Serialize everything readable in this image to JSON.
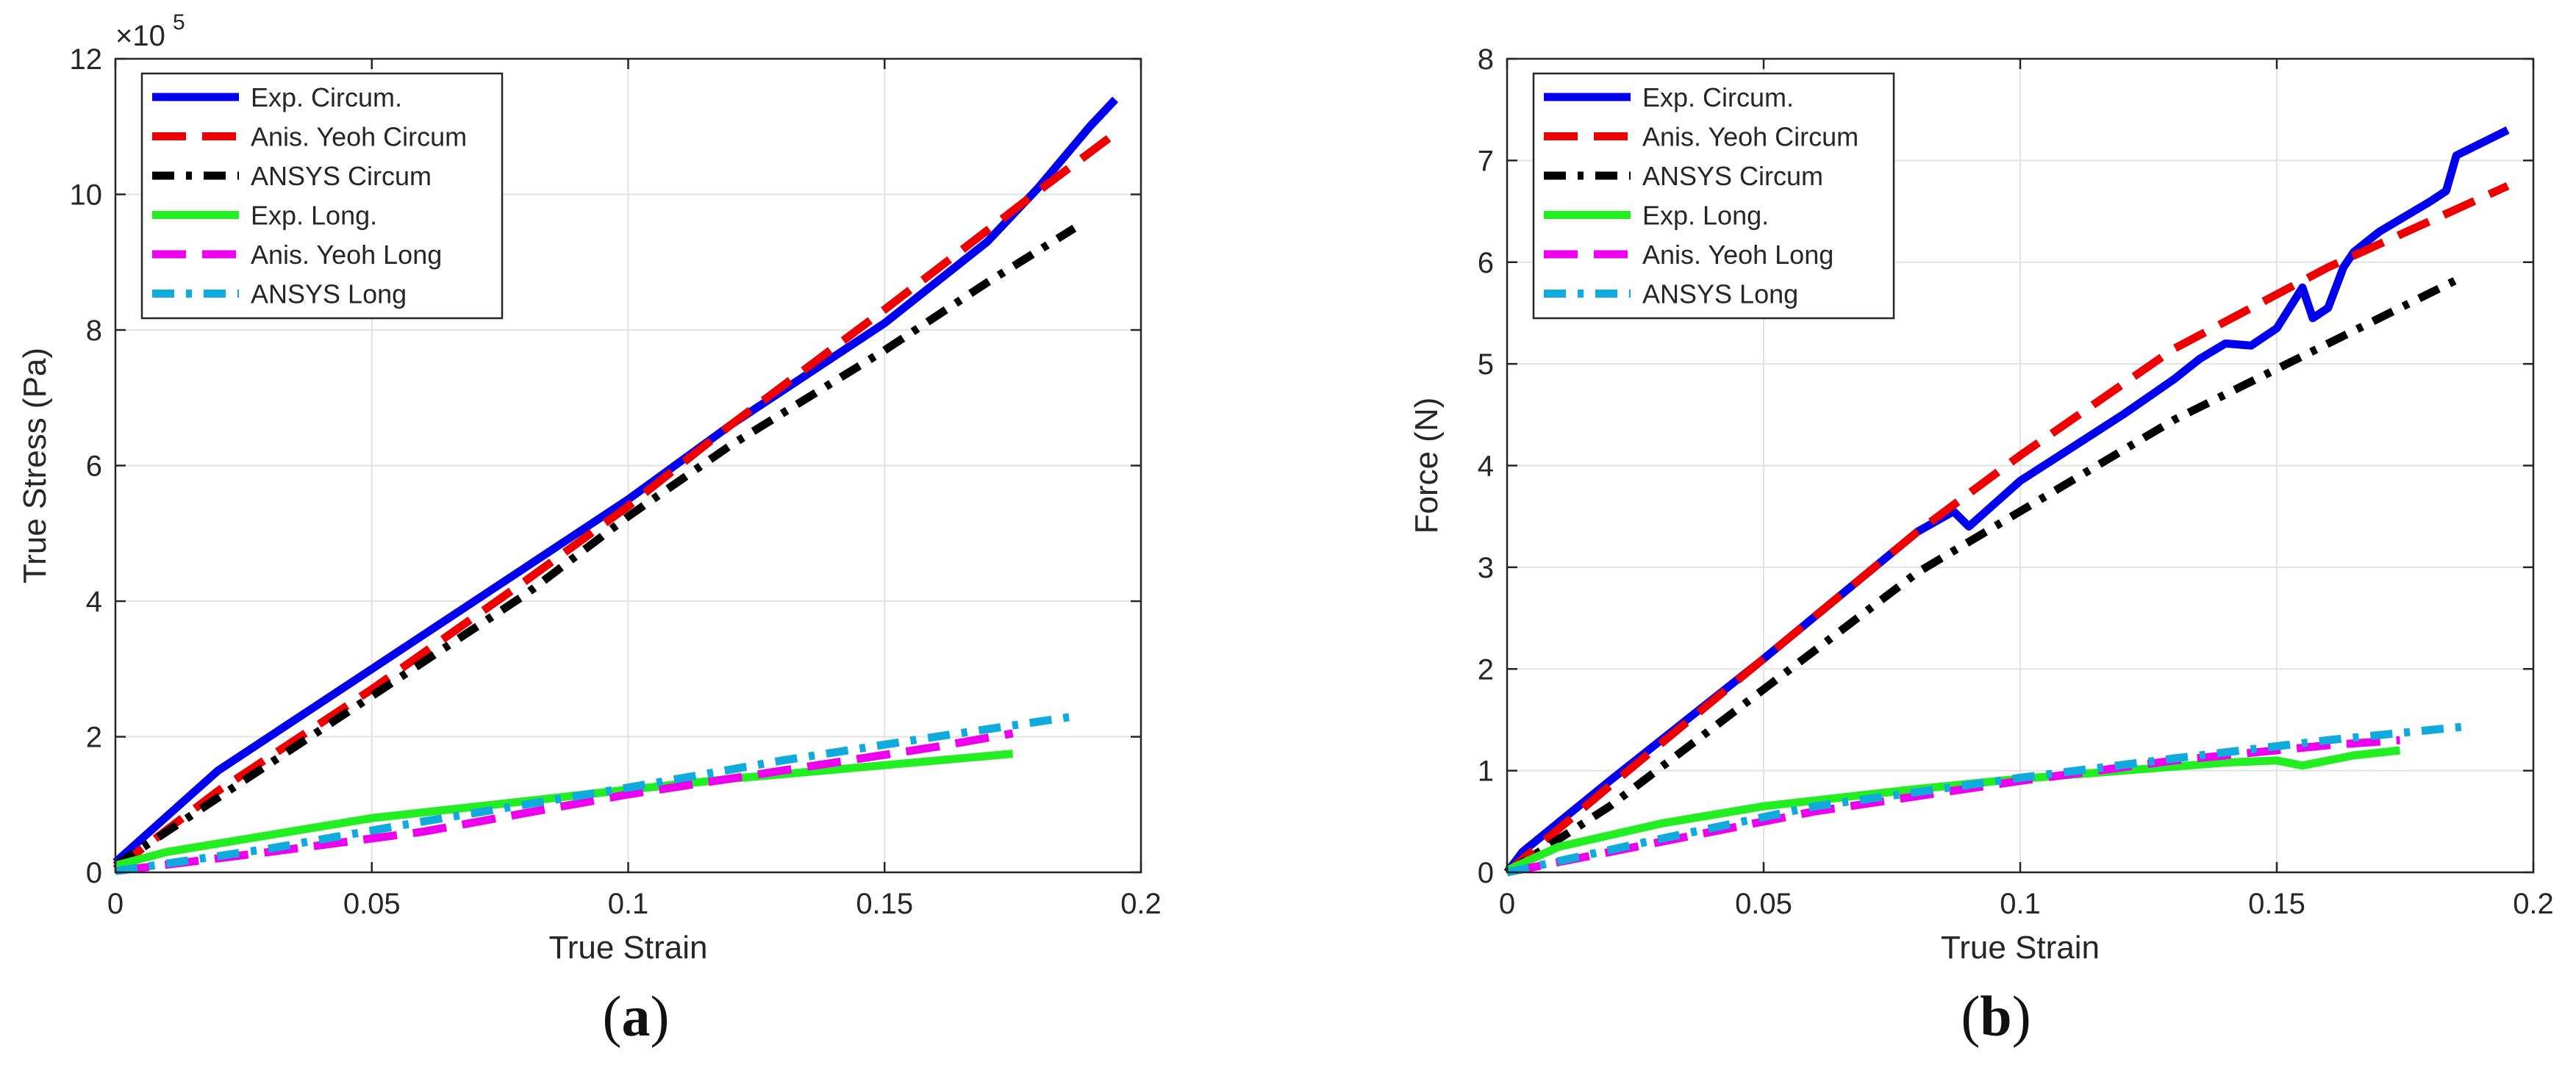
{
  "chart_data": [
    {
      "type": "line",
      "panel": "a",
      "xlabel": "True Strain",
      "ylabel": "True Stress (Pa)",
      "exponent_label": "×10",
      "exponent_power": "5",
      "scale": 100000,
      "xlim": [
        0,
        0.2
      ],
      "ylim": [
        0,
        12
      ],
      "xticks": [
        0,
        0.05,
        0.1,
        0.15,
        0.2
      ],
      "xtick_labels": [
        "0",
        "0.05",
        "0.1",
        "0.15",
        "0.2"
      ],
      "yticks": [
        0,
        2,
        4,
        6,
        8,
        10,
        12
      ],
      "ytick_labels": [
        "0",
        "2",
        "4",
        "6",
        "8",
        "10",
        "12"
      ],
      "grid": true,
      "legend_position": "top-left",
      "series": [
        {
          "name": "Exp. Circum.",
          "color": "#0000ee",
          "style": "solid",
          "x": [
            0,
            0.02,
            0.05,
            0.08,
            0.1,
            0.12,
            0.15,
            0.17,
            0.18,
            0.19,
            0.195
          ],
          "y": [
            0.15,
            1.5,
            3.0,
            4.5,
            5.5,
            6.6,
            8.1,
            9.3,
            10.1,
            11.0,
            11.4
          ]
        },
        {
          "name": "Anis. Yeoh Circum",
          "color": "#ee0000",
          "style": "dash",
          "x": [
            0,
            0.02,
            0.05,
            0.08,
            0.1,
            0.12,
            0.15,
            0.18,
            0.195
          ],
          "y": [
            0.05,
            1.2,
            2.7,
            4.3,
            5.4,
            6.6,
            8.3,
            10.05,
            10.9
          ]
        },
        {
          "name": "ANSYS Circum",
          "color": "#000000",
          "style": "dashdot",
          "x": [
            0,
            0.02,
            0.05,
            0.08,
            0.1,
            0.12,
            0.15,
            0.17,
            0.187
          ],
          "y": [
            0.1,
            1.1,
            2.6,
            4.1,
            5.25,
            6.3,
            7.7,
            8.7,
            9.5
          ]
        },
        {
          "name": "Exp. Long.",
          "color": "#22ee22",
          "style": "solid",
          "x": [
            0,
            0.01,
            0.03,
            0.05,
            0.08,
            0.1,
            0.12,
            0.15,
            0.175
          ],
          "y": [
            0.1,
            0.3,
            0.55,
            0.8,
            1.05,
            1.22,
            1.38,
            1.58,
            1.75
          ]
        },
        {
          "name": "Anis. Yeoh Long",
          "color": "#ee00ee",
          "style": "dash",
          "x": [
            0,
            0.03,
            0.06,
            0.1,
            0.13,
            0.16,
            0.175
          ],
          "y": [
            0.02,
            0.3,
            0.6,
            1.15,
            1.5,
            1.85,
            2.05
          ]
        },
        {
          "name": "ANSYS Long",
          "color": "#11aadd",
          "style": "dashdot",
          "x": [
            0,
            0.03,
            0.06,
            0.1,
            0.13,
            0.16,
            0.187
          ],
          "y": [
            0.02,
            0.35,
            0.75,
            1.25,
            1.65,
            2.0,
            2.3
          ]
        }
      ]
    },
    {
      "type": "line",
      "panel": "b",
      "xlabel": "True Strain",
      "ylabel": "Force (N)",
      "xlim": [
        0,
        0.2
      ],
      "ylim": [
        0,
        8
      ],
      "xticks": [
        0,
        0.05,
        0.1,
        0.15,
        0.2
      ],
      "xtick_labels": [
        "0",
        "0.05",
        "0.1",
        "0.15",
        "0.2"
      ],
      "yticks": [
        0,
        1,
        2,
        3,
        4,
        5,
        6,
        7,
        8
      ],
      "ytick_labels": [
        "0",
        "1",
        "2",
        "3",
        "4",
        "5",
        "6",
        "7",
        "8"
      ],
      "grid": true,
      "legend_position": "top-left",
      "series": [
        {
          "name": "Exp. Circum.",
          "color": "#0000ee",
          "style": "solid",
          "x": [
            0,
            0.003,
            0.02,
            0.05,
            0.08,
            0.087,
            0.09,
            0.1,
            0.12,
            0.13,
            0.135,
            0.14,
            0.145,
            0.15,
            0.155,
            0.157,
            0.16,
            0.163,
            0.165,
            0.17,
            0.18,
            0.183,
            0.185,
            0.195
          ],
          "y": [
            0,
            0.2,
            0.9,
            2.1,
            3.35,
            3.55,
            3.4,
            3.85,
            4.5,
            4.85,
            5.05,
            5.2,
            5.18,
            5.35,
            5.75,
            5.45,
            5.55,
            5.95,
            6.1,
            6.3,
            6.6,
            6.7,
            7.05,
            7.3
          ]
        },
        {
          "name": "Anis. Yeoh Circum",
          "color": "#ee0000",
          "style": "dash",
          "x": [
            0,
            0.02,
            0.05,
            0.08,
            0.1,
            0.13,
            0.16,
            0.195
          ],
          "y": [
            0,
            0.85,
            2.1,
            3.35,
            4.1,
            5.15,
            5.95,
            6.75
          ]
        },
        {
          "name": "ANSYS Circum",
          "color": "#000000",
          "style": "dashdot",
          "x": [
            0,
            0.02,
            0.05,
            0.08,
            0.1,
            0.13,
            0.16,
            0.186
          ],
          "y": [
            0,
            0.65,
            1.8,
            2.95,
            3.55,
            4.45,
            5.2,
            5.85
          ]
        },
        {
          "name": "Exp. Long.",
          "color": "#22ee22",
          "style": "solid",
          "x": [
            0,
            0.01,
            0.03,
            0.05,
            0.08,
            0.1,
            0.12,
            0.14,
            0.15,
            0.155,
            0.165,
            0.174
          ],
          "y": [
            0.02,
            0.25,
            0.48,
            0.65,
            0.82,
            0.92,
            1.0,
            1.08,
            1.1,
            1.05,
            1.15,
            1.2
          ]
        },
        {
          "name": "Anis. Yeoh Long",
          "color": "#ee00ee",
          "style": "dash",
          "x": [
            0,
            0.03,
            0.06,
            0.1,
            0.13,
            0.16,
            0.174
          ],
          "y": [
            0,
            0.3,
            0.6,
            0.9,
            1.1,
            1.25,
            1.3
          ]
        },
        {
          "name": "ANSYS Long",
          "color": "#11aadd",
          "style": "dashdot",
          "x": [
            0,
            0.03,
            0.06,
            0.1,
            0.13,
            0.16,
            0.186
          ],
          "y": [
            0,
            0.33,
            0.65,
            0.93,
            1.12,
            1.3,
            1.43
          ]
        }
      ]
    }
  ],
  "panel_labels": [
    "a",
    "b"
  ]
}
